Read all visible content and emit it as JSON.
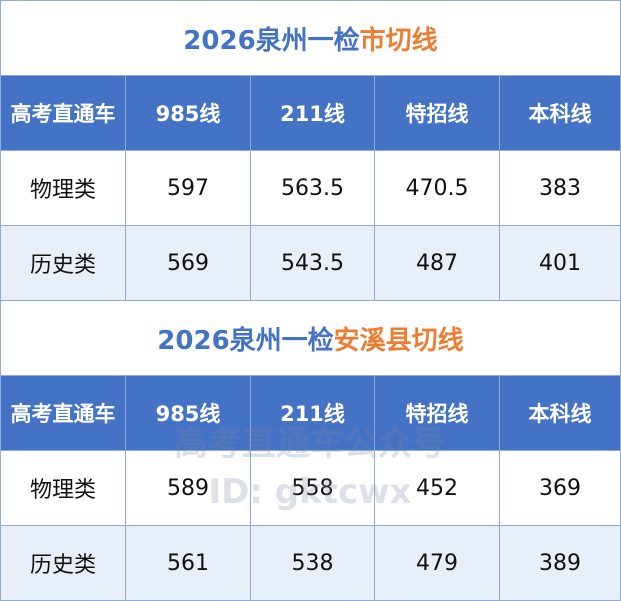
{
  "tables": [
    {
      "title_main": "2026泉州一检",
      "title_accent": "市切线",
      "headers": [
        "高考直通车",
        "985线",
        "211线",
        "特招线",
        "本科线"
      ],
      "rows": [
        [
          "物理类",
          "597",
          "563.5",
          "470.5",
          "383"
        ],
        [
          "历史类",
          "569",
          "543.5",
          "487",
          "401"
        ]
      ]
    },
    {
      "title_main": "2026泉州一检",
      "title_accent": "安溪县切线",
      "headers": [
        "高考直通车",
        "985线",
        "211线",
        "特招线",
        "本科线"
      ],
      "rows": [
        [
          "物理类",
          "589",
          "558",
          "452",
          "369"
        ],
        [
          "历史类",
          "561",
          "538",
          "479",
          "389"
        ]
      ]
    }
  ],
  "watermark": {
    "line1": "高考直通车公众号",
    "line2": "ID: gktcwx"
  },
  "colors": {
    "header_bg": "#4472c4",
    "title_blue": "#4472c4",
    "title_orange": "#ed7d31",
    "alt_row": "#e9eff8"
  }
}
